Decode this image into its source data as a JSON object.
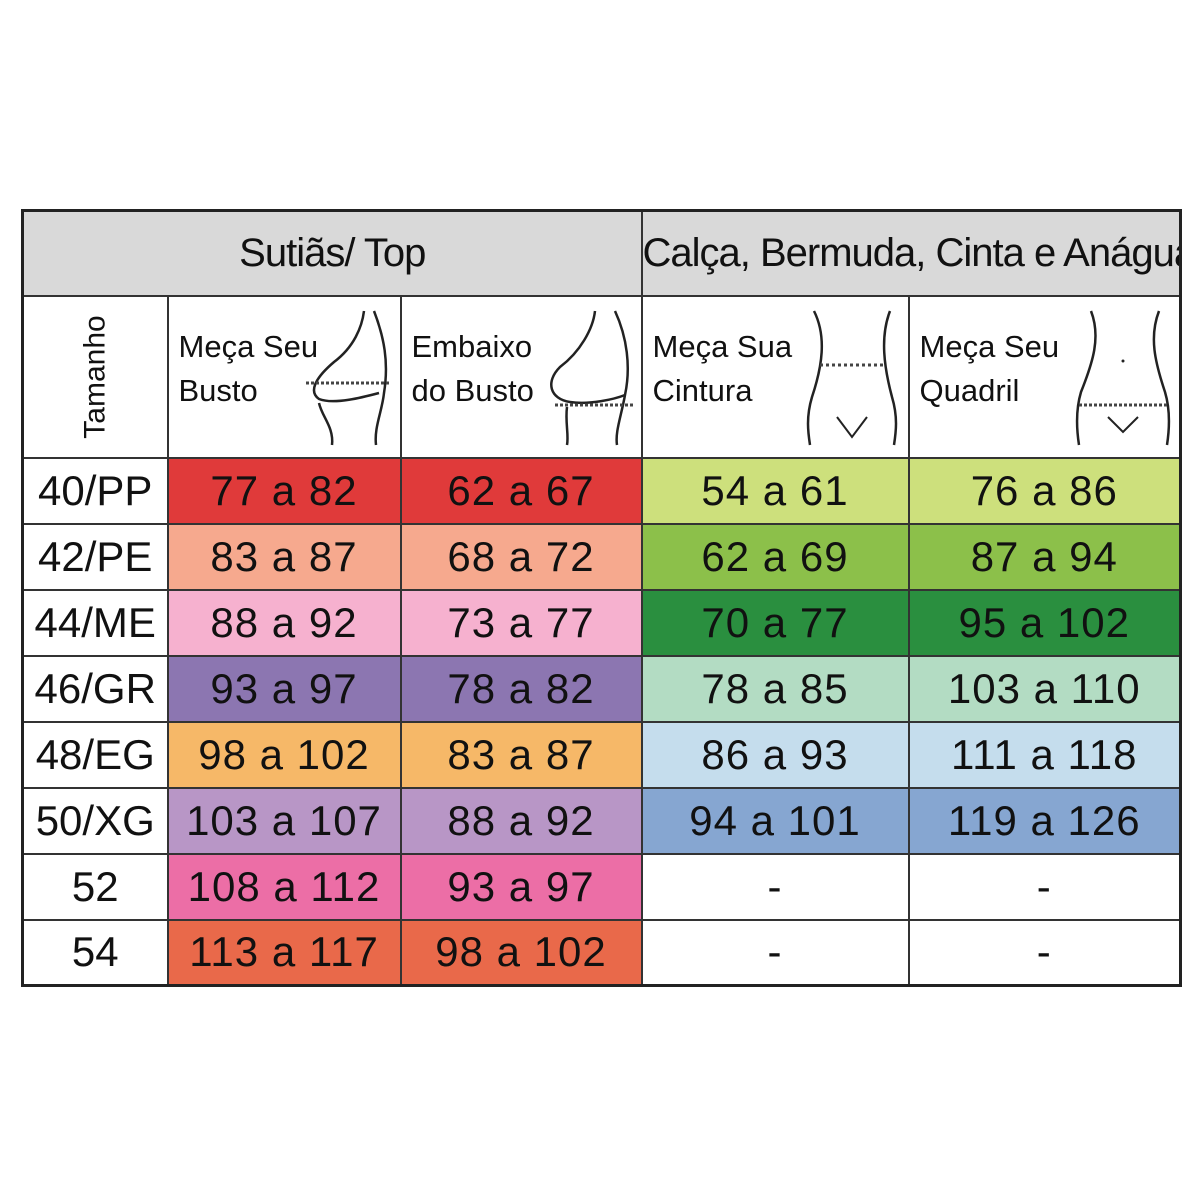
{
  "headers": {
    "bra_group": "Sutiãs/ Top",
    "pants_group": "Calça, Bermuda, Cinta e  Anágua",
    "size_label": "Tamanho",
    "bust": "Meça Seu\nBusto",
    "underbust": "Embaixo\ndo Busto",
    "waist": "Meça Sua\nCintura",
    "hip": "Meça Seu\nQuadril"
  },
  "rows": [
    {
      "size": "40/PP",
      "bust": "77 a 82",
      "underbust": "62 a 67",
      "waist": "54 a 61",
      "hip": "76 a 86"
    },
    {
      "size": "42/PE",
      "bust": "83 a 87",
      "underbust": "68 a 72",
      "waist": "62 a 69",
      "hip": "87 a 94"
    },
    {
      "size": "44/ME",
      "bust": "88 a 92",
      "underbust": "73 a 77",
      "waist": "70 a 77",
      "hip": "95 a 102"
    },
    {
      "size": "46/GR",
      "bust": "93 a 97",
      "underbust": "78 a 82",
      "waist": "78 a 85",
      "hip": "103 a 110"
    },
    {
      "size": "48/EG",
      "bust": "98 a 102",
      "underbust": "83 a 87",
      "waist": "86 a 93",
      "hip": "111 a 118"
    },
    {
      "size": "50/XG",
      "bust": "103 a 107",
      "underbust": "88 a 92",
      "waist": "94 a 101",
      "hip": "119 a 126"
    },
    {
      "size": "52",
      "bust": "108 a 112",
      "underbust": "93 a 97",
      "waist": "-",
      "hip": "-"
    },
    {
      "size": "54",
      "bust": "113 a 117",
      "underbust": "98 a 102",
      "waist": "-",
      "hip": "-"
    }
  ],
  "colors": {
    "bra_rows": [
      "#e03a3a",
      "#f6a98e",
      "#f6b1cf",
      "#8c76b1",
      "#f6b868",
      "#b896c6",
      "#ec6ea6",
      "#e9694a"
    ],
    "pants_rows": [
      "#cde07c",
      "#8cc04a",
      "#2a8f3f",
      "#b3dcc3",
      "#c5dded",
      "#86a6d1",
      "#ffffff",
      "#ffffff"
    ],
    "header_background": "#d9d9d9"
  },
  "icons": {
    "bust": "bust-measure-icon",
    "underbust": "underbust-measure-icon",
    "waist": "waist-measure-icon",
    "hip": "hip-measure-icon"
  }
}
